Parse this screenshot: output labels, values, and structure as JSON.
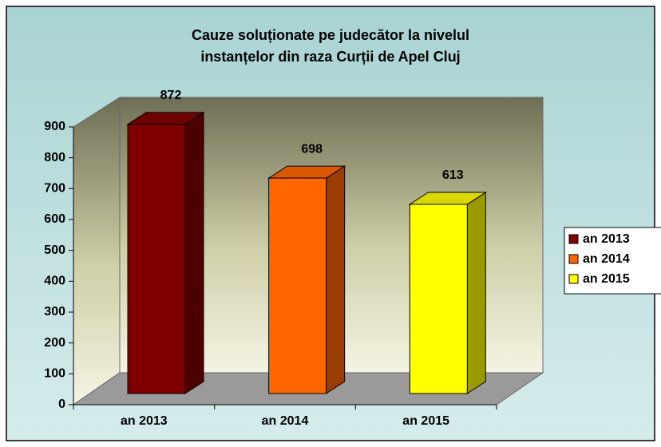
{
  "chart_data": {
    "type": "bar3d",
    "title": "Cauze soluționate pe judecător la nivelul",
    "subtitle": "instanțelor din raza Curții de Apel Cluj",
    "categories": [
      "an 2013",
      "an 2014",
      "an 2015"
    ],
    "values": [
      872,
      698,
      613
    ],
    "colors": [
      "#800000",
      "#ff6600",
      "#ffff00"
    ],
    "ylim": [
      0,
      900
    ],
    "yticks": [
      0,
      100,
      200,
      300,
      400,
      500,
      600,
      700,
      800,
      900
    ],
    "legend": "right"
  }
}
